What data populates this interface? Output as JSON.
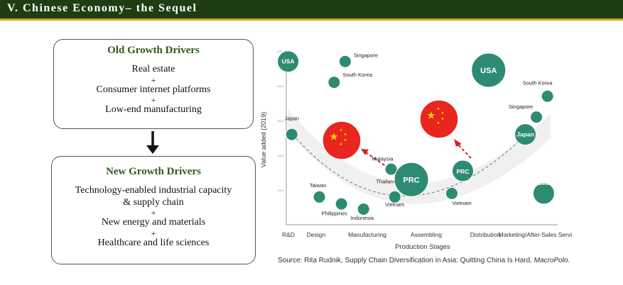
{
  "slide": {
    "title": "V. Chinese Economy– the Sequel"
  },
  "old_drivers": {
    "title": "Old Growth Drivers",
    "items": [
      "Real estate",
      "+",
      "Consumer internet platforms",
      "+",
      "Low-end manufacturing"
    ]
  },
  "new_drivers": {
    "title": "New Growth Drivers",
    "items": [
      "Technology-enabled industrial capacity",
      "& supply chain",
      "+",
      "New energy and materials",
      "+",
      "Healthcare and life sciences"
    ]
  },
  "chart_data": {
    "type": "scatter",
    "xlabel": "Production Stages",
    "ylabel": "Value added (2019)",
    "categories": [
      "R&D",
      "Design",
      "Manufacturing",
      "Assembling",
      "Distribution",
      "Marketing/After-Sales Services"
    ],
    "y_ticks": [
      "1000",
      "2000",
      "3000",
      "4000",
      "5000"
    ],
    "curve": "smile",
    "points": [
      {
        "label": "USA",
        "in_bubble": true,
        "x": 0.05,
        "y": 4700,
        "size": "medium"
      },
      {
        "label": "Singapore",
        "in_bubble": false,
        "x": 1.6,
        "y": 4700,
        "size": "small"
      },
      {
        "label": "South Korea",
        "in_bubble": false,
        "x": 1.3,
        "y": 4100,
        "size": "small"
      },
      {
        "label": "Japan",
        "in_bubble": false,
        "x": 0.15,
        "y": 2600,
        "size": "small"
      },
      {
        "label": "Taiwan",
        "in_bubble": false,
        "x": 0.9,
        "y": 800,
        "size": "small"
      },
      {
        "label": "Philippines",
        "in_bubble": false,
        "x": 1.5,
        "y": 600,
        "size": "small"
      },
      {
        "label": "Indonesia",
        "in_bubble": false,
        "x": 2.1,
        "y": 450,
        "size": "small"
      },
      {
        "label": "Malaysia",
        "in_bubble": false,
        "x": 2.85,
        "y": 1600,
        "size": "small"
      },
      {
        "label": "Thailand",
        "in_bubble": false,
        "x": 3.1,
        "y": 1150,
        "size": "tiny"
      },
      {
        "label": "PRC",
        "in_bubble": true,
        "x": 3.4,
        "y": 1300,
        "size": "large"
      },
      {
        "label": "Vietnam",
        "in_bubble": false,
        "x": 2.95,
        "y": 800,
        "size": "small"
      },
      {
        "label": "Vietnam",
        "in_bubble": false,
        "x": 4.5,
        "y": 900,
        "size": "small"
      },
      {
        "label": "PRC",
        "in_bubble": true,
        "x": 4.8,
        "y": 1550,
        "size": "medium"
      },
      {
        "label": "USA",
        "in_bubble": true,
        "x": 5.5,
        "y": 4450,
        "size": "large"
      },
      {
        "label": "Japan",
        "in_bubble": true,
        "x": 6.5,
        "y": 2600,
        "size": "medium"
      },
      {
        "label": "Singapore",
        "in_bubble": false,
        "x": 6.8,
        "y": 3100,
        "size": "small"
      },
      {
        "label": "South Korea",
        "in_bubble": false,
        "x": 7.1,
        "y": 3700,
        "size": "small"
      },
      {
        "label": "Taiwan",
        "in_bubble": true,
        "x": 7.0,
        "y": 900,
        "size": "medium"
      }
    ],
    "flags": [
      {
        "name": "china-flag",
        "x": 1.3,
        "y": 2450
      },
      {
        "name": "china-flag",
        "x": 4.6,
        "y": 3100
      }
    ],
    "colors": {
      "bubble": "#2e8b73",
      "arrow": "#d62222",
      "flag": "#e8251f",
      "star": "#ffde00"
    },
    "source_prefix": "Source: Rita Rudnik, Supply Chain Diversification in Asia: Quitting China Is Hard. ",
    "source_italic": "MacroPolo."
  }
}
